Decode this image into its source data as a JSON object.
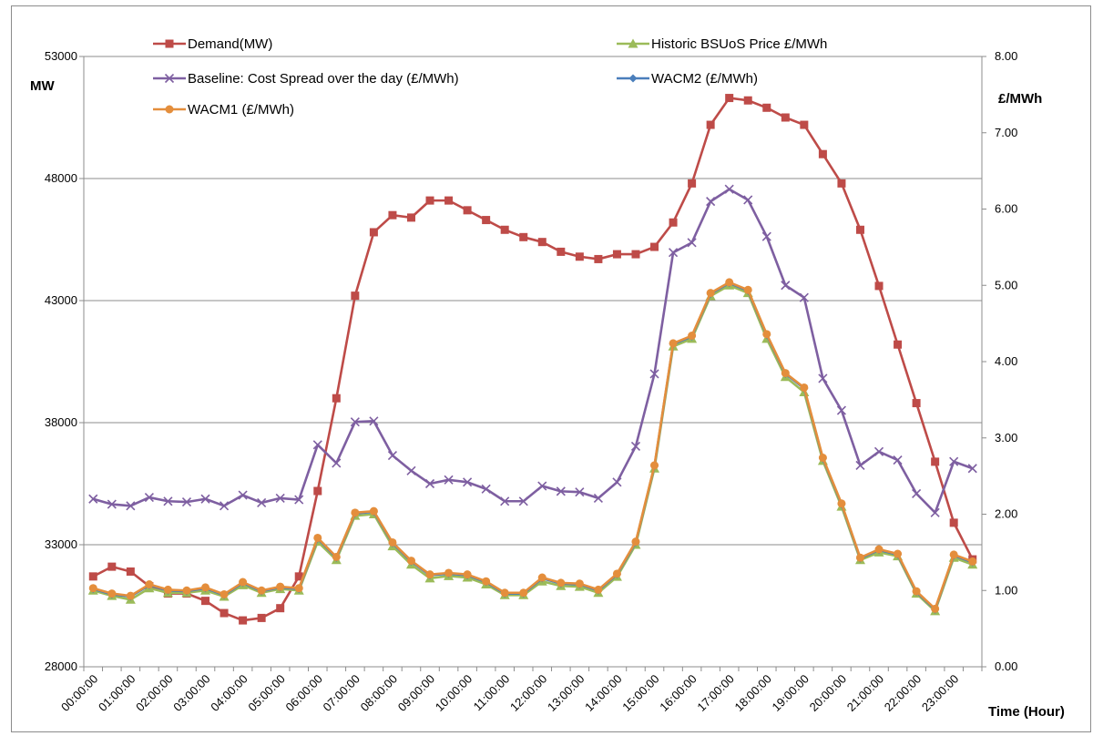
{
  "chart_data": {
    "type": "line",
    "title": "",
    "xlabel": "Time (Hour)",
    "ylabel_left": "MW",
    "ylabel_right": "£/MWh",
    "ylim_left": [
      28000,
      53000
    ],
    "ylim_right": [
      0,
      8
    ],
    "yticks_left": [
      "28000",
      "33000",
      "38000",
      "43000",
      "48000",
      "53000"
    ],
    "yticks_right": [
      "0.00",
      "1.00",
      "2.00",
      "3.00",
      "4.00",
      "5.00",
      "6.00",
      "7.00",
      "8.00"
    ],
    "grid": "horizontal",
    "legend_position": "top",
    "x_tick_labels": [
      "00:00:00",
      "01:00:00",
      "02:00:00",
      "03:00:00",
      "04:00:00",
      "05:00:00",
      "06:00:00",
      "07:00:00",
      "08:00:00",
      "09:00:00",
      "10:00:00",
      "11:00:00",
      "12:00:00",
      "13:00:00",
      "14:00:00",
      "15:00:00",
      "16:00:00",
      "17:00:00",
      "18:00:00",
      "19:00:00",
      "20:00:00",
      "21:00:00",
      "22:00:00",
      "23:00:00"
    ],
    "series": [
      {
        "name": "Demand(MW)",
        "axis": "left",
        "color": "#BE4B48",
        "marker": "square",
        "values": [
          31700,
          32100,
          31900,
          31300,
          31000,
          31000,
          30700,
          30200,
          29900,
          30000,
          30400,
          31700,
          35200,
          39000,
          43200,
          45800,
          46500,
          46400,
          47100,
          47100,
          46700,
          46300,
          45900,
          45600,
          45400,
          45000,
          44800,
          44700,
          44900,
          44900,
          45200,
          46200,
          47800,
          50200,
          51300,
          51200,
          50900,
          50500,
          50200,
          49000,
          47800,
          45900,
          43600,
          41200,
          38800,
          36400,
          33900,
          32400
        ]
      },
      {
        "name": "Historic BSUoS Price £/MWh",
        "axis": "right",
        "color": "#9BBB59",
        "marker": "triangle",
        "values": [
          1.0,
          0.93,
          0.88,
          1.03,
          0.97,
          0.97,
          1.0,
          0.92,
          1.07,
          0.97,
          1.02,
          1.0,
          1.64,
          1.4,
          1.98,
          2.0,
          1.58,
          1.34,
          1.16,
          1.19,
          1.17,
          1.08,
          0.94,
          0.94,
          1.12,
          1.06,
          1.05,
          0.97,
          1.18,
          1.6,
          2.6,
          4.2,
          4.3,
          4.86,
          5.0,
          4.9,
          4.3,
          3.8,
          3.6,
          2.7,
          2.1,
          1.4,
          1.5,
          1.45,
          0.96,
          0.73,
          1.43,
          1.34
        ]
      },
      {
        "name": "Baseline: Cost Spread over the day (£/MWh)",
        "axis": "right",
        "color": "#7E5FA1",
        "marker": "x",
        "values": [
          2.2,
          2.13,
          2.11,
          2.22,
          2.17,
          2.16,
          2.2,
          2.11,
          2.25,
          2.15,
          2.21,
          2.19,
          2.91,
          2.67,
          3.21,
          3.22,
          2.77,
          2.57,
          2.4,
          2.45,
          2.42,
          2.33,
          2.17,
          2.17,
          2.37,
          2.3,
          2.29,
          2.21,
          2.42,
          2.89,
          3.84,
          5.43,
          5.56,
          6.1,
          6.26,
          6.12,
          5.64,
          5.0,
          4.84,
          3.78,
          3.36,
          2.64,
          2.82,
          2.71,
          2.27,
          2.02,
          2.69,
          2.6
        ]
      },
      {
        "name": "WACM2 (£/MWh)",
        "axis": "right",
        "color": "#4A7EBB",
        "marker": "diamond",
        "values": [
          1.02,
          0.95,
          0.92,
          1.07,
          1.0,
          0.99,
          1.03,
          0.94,
          1.1,
          0.99,
          1.04,
          1.02,
          1.68,
          1.43,
          2.01,
          2.03,
          1.62,
          1.38,
          1.2,
          1.22,
          1.2,
          1.11,
          0.96,
          0.96,
          1.16,
          1.09,
          1.08,
          1.0,
          1.21,
          1.63,
          2.63,
          4.23,
          4.33,
          4.89,
          5.03,
          4.93,
          4.35,
          3.84,
          3.65,
          2.73,
          2.13,
          1.42,
          1.53,
          1.47,
          0.98,
          0.75,
          1.46,
          1.37
        ]
      },
      {
        "name": "WACM1 (£/MWh)",
        "axis": "right",
        "color": "#E48E3C",
        "marker": "circle",
        "values": [
          1.03,
          0.96,
          0.93,
          1.08,
          1.01,
          1.0,
          1.04,
          0.95,
          1.11,
          1.0,
          1.05,
          1.03,
          1.69,
          1.44,
          2.02,
          2.04,
          1.63,
          1.39,
          1.21,
          1.23,
          1.21,
          1.12,
          0.97,
          0.97,
          1.17,
          1.1,
          1.09,
          1.01,
          1.22,
          1.64,
          2.64,
          4.24,
          4.34,
          4.9,
          5.04,
          4.94,
          4.36,
          3.85,
          3.66,
          2.74,
          2.14,
          1.43,
          1.54,
          1.48,
          0.99,
          0.76,
          1.47,
          1.38
        ]
      }
    ]
  }
}
